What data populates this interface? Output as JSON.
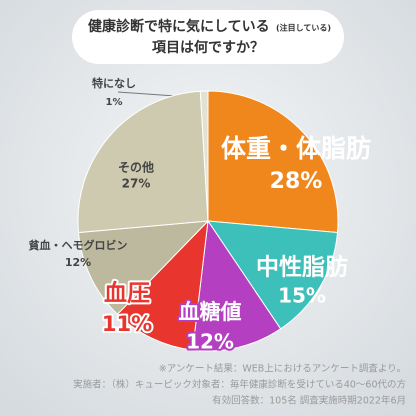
{
  "chart_data": {
    "type": "pie",
    "title": "健康診断で特に気にしている",
    "title_note": "(注目している)",
    "subtitle": "項目は何ですか？",
    "categories": [
      "体重・体脂肪",
      "中性脂肪",
      "血糖値",
      "血圧",
      "貧血・ヘモグロビン",
      "その他",
      "特になし"
    ],
    "values": [
      28,
      15,
      12,
      11,
      12,
      27,
      1
    ],
    "value_labels": [
      "28%",
      "15%",
      "12%",
      "11%",
      "12%",
      "27%",
      "1%"
    ],
    "colors": [
      "#f0871c",
      "#3cc0b9",
      "#b53fc1",
      "#e8362f",
      "#bcb99e",
      "#cdcab0",
      "#e2e1d3"
    ],
    "notes": [
      "※アンケート結果：WEB上におけるアンケート調査より。",
      "実施者：（株）キューピック対象者：毎年健康診断を受けている40〜60代の方",
      "有効回答数：105名 調査実施時期2022年6月"
    ]
  }
}
